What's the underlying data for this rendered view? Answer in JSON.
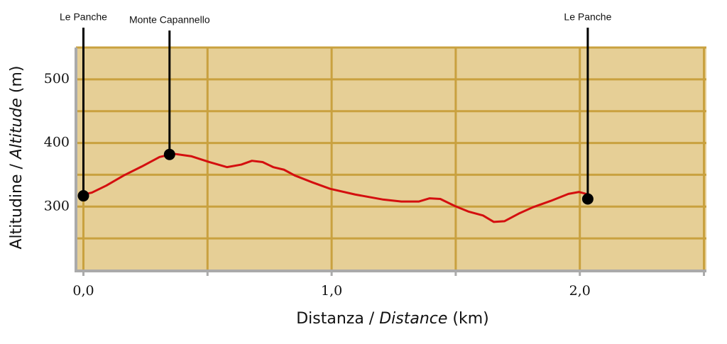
{
  "chart_data": {
    "type": "line",
    "xlabel": [
      "Distanza / ",
      "Distance",
      " (km)"
    ],
    "ylabel": [
      "Altitudine / ",
      "Altitude",
      " (m)"
    ],
    "x": [
      0,
      0.034,
      0.092,
      0.163,
      0.235,
      0.307,
      0.364,
      0.436,
      0.507,
      0.579,
      0.636,
      0.679,
      0.722,
      0.765,
      0.808,
      0.851,
      0.923,
      0.994,
      1.095,
      1.209,
      1.281,
      1.352,
      1.395,
      1.438,
      1.496,
      1.553,
      1.61,
      1.653,
      1.696,
      1.754,
      1.811,
      1.883,
      1.954,
      1.997,
      2.034
    ],
    "series": [
      {
        "color": "#d40f0f",
        "values": [
          319,
          322,
          333,
          349,
          363,
          378,
          383,
          379,
          370,
          362,
          366,
          372,
          370,
          362,
          358,
          349,
          338,
          328,
          319,
          311,
          308,
          308,
          313,
          312,
          301,
          292,
          286,
          276,
          277,
          289,
          299,
          309,
          320,
          323,
          319
        ]
      }
    ],
    "xlim": [
      -0.03,
      2.51
    ],
    "ylim": [
      200,
      550
    ],
    "xticks": [
      {
        "value": 0,
        "label": "0,0"
      },
      {
        "value": 1,
        "label": "1,0"
      },
      {
        "value": 2,
        "label": "2,0"
      }
    ],
    "xgrid_minor": [
      0.5,
      1.5,
      2.5
    ],
    "yticks": [
      300,
      400,
      500
    ],
    "ygrid_minor": [
      250,
      350,
      450,
      550
    ],
    "grid": true,
    "points": [
      {
        "label": "Le Panche",
        "x": 0,
        "y": 317
      },
      {
        "label": "Monte Capannello",
        "x": 0.347,
        "y": 382
      },
      {
        "label": "Le Panche",
        "x": 2.032,
        "y": 312
      }
    ]
  }
}
